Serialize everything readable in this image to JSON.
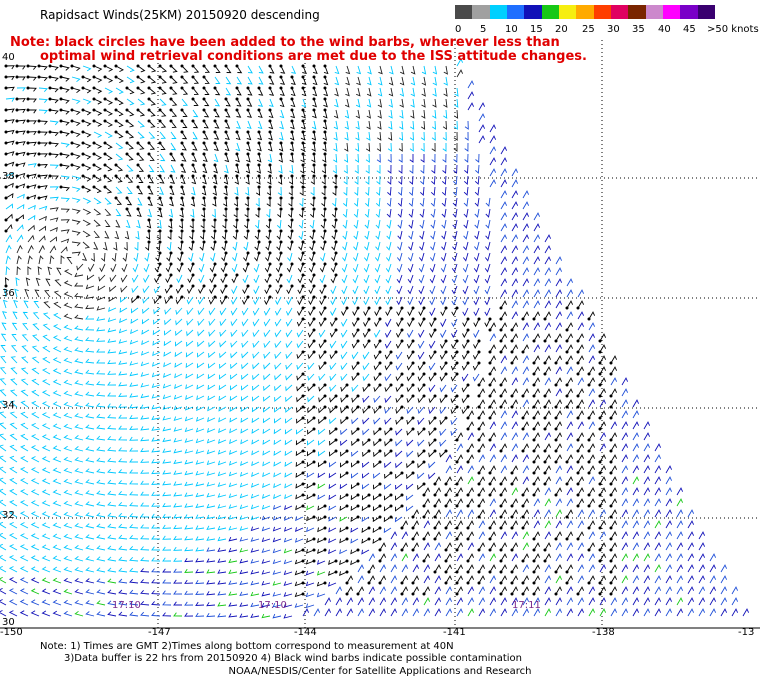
{
  "title": "Rapidsact Winds(25KM) 20150920 descending",
  "note": [
    "Note: black circles have been added to the wind barbs, wherever less than",
    "optimal wind retrieval conditions are met due to the ISS attitude changes."
  ],
  "legend": {
    "colors": [
      "#4a4a4a",
      "#a0a0a0",
      "#00d0ff",
      "#1f6fff",
      "#1111b8",
      "#17c817",
      "#f6ee10",
      "#ffaa00",
      "#ff3e00",
      "#e00060",
      "#7a2500",
      "#cc88cc",
      "#ff00ff",
      "#7a00c8",
      "#3a0070"
    ],
    "labels": [
      "0",
      "5",
      "10",
      "15",
      "20",
      "25",
      "30",
      "35",
      "40",
      "45",
      ">50 knots"
    ]
  },
  "map": {
    "lat_labels": [
      "40",
      "38",
      "36",
      "34",
      "32",
      "30"
    ],
    "lon_labels": [
      "-150",
      "-147",
      "-144",
      "-141",
      "-138",
      "-13"
    ]
  },
  "times": [
    "17:10",
    "17:10",
    "17:11"
  ],
  "footer": {
    "line1": "Note: 1) Times are GMT 2)Times along bottom correspond to measurement at 40N",
    "line2": "3)Data buffer is 22 hrs from 20150920 4) Black wind barbs indicate possible contamination",
    "credit": "NOAA/NESDIS/Center for Satellite Applications and Research"
  }
}
